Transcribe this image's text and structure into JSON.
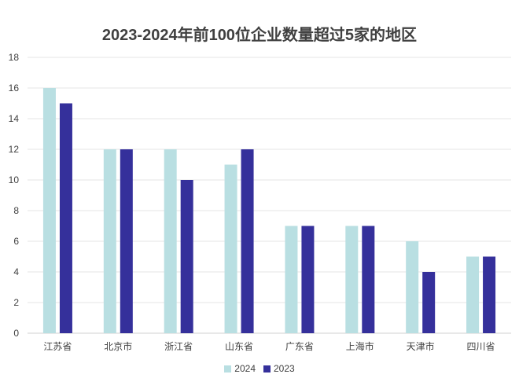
{
  "chart_data": {
    "type": "bar",
    "title": "2023-2024年前100位企业数量超过5家的地区",
    "categories": [
      "江苏省",
      "北京市",
      "浙江省",
      "山东省",
      "广东省",
      "上海市",
      "天津市",
      "四川省"
    ],
    "series": [
      {
        "name": "2024",
        "color": "#b9dfe2",
        "values": [
          16,
          12,
          12,
          11,
          7,
          7,
          6,
          5
        ]
      },
      {
        "name": "2023",
        "color": "#35309b",
        "values": [
          15,
          12,
          10,
          12,
          7,
          7,
          4,
          5
        ]
      }
    ],
    "ylim": [
      0,
      18
    ],
    "yticks": [
      0,
      2,
      4,
      6,
      8,
      10,
      12,
      14,
      16,
      18
    ],
    "xlabel": "",
    "ylabel": "",
    "grid": true,
    "legend": "bottom"
  }
}
